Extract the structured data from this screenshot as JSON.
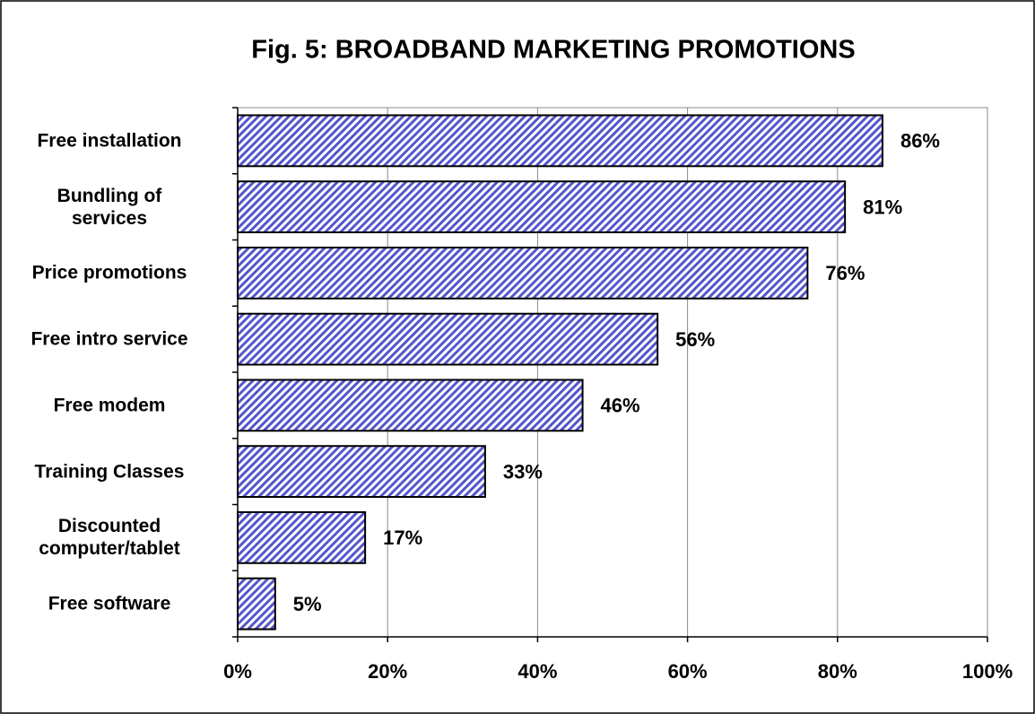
{
  "chart_data": {
    "type": "barh",
    "title": "Fig. 5:  BROADBAND MARKETING PROMOTIONS",
    "categories": [
      "Free installation",
      "Bundling of\nservices",
      "Price promotions",
      "Free intro service",
      "Free modem",
      "Training Classes",
      "Discounted\ncomputer/tablet",
      "Free software"
    ],
    "values": [
      86,
      81,
      76,
      56,
      46,
      33,
      17,
      5
    ],
    "value_labels": [
      "86%",
      "81%",
      "76%",
      "56%",
      "46%",
      "33%",
      "17%",
      "5%"
    ],
    "color": "#5555cc",
    "xlim": [
      0,
      100
    ],
    "xticks": [
      {
        "value": 0,
        "label": "0%"
      },
      {
        "value": 20,
        "label": "20%"
      },
      {
        "value": 40,
        "label": "40%"
      },
      {
        "value": 60,
        "label": "60%"
      },
      {
        "value": 80,
        "label": "80%"
      },
      {
        "value": 100,
        "label": "100%"
      }
    ],
    "grid": true
  }
}
